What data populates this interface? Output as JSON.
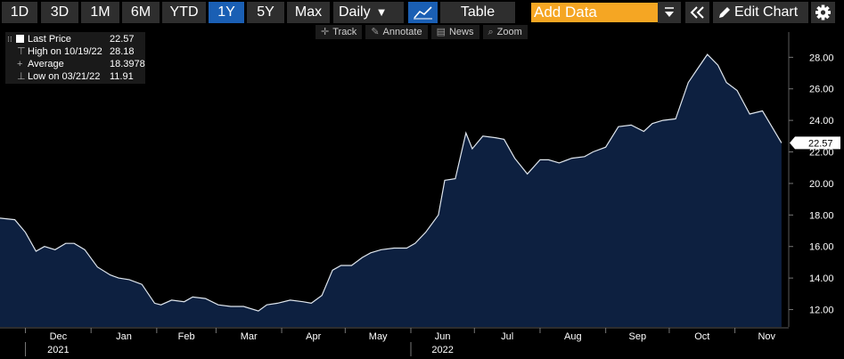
{
  "toolbar": {
    "ranges": [
      "1D",
      "3D",
      "1M",
      "6M",
      "YTD",
      "1Y",
      "5Y",
      "Max"
    ],
    "active_range": "1Y",
    "frequency": "Daily",
    "view_label": "Table",
    "add_data_placeholder": "Add Data",
    "edit_chart_label": "Edit Chart"
  },
  "subtoolbar": {
    "track": "Track",
    "annotate": "Annotate",
    "news": "News",
    "zoom": "Zoom"
  },
  "legend": {
    "last_label": "Last Price",
    "last_value": "22.57",
    "high_label": "High on 10/19/22",
    "high_value": "28.18",
    "avg_label": "Average",
    "avg_value": "18.3978",
    "low_label": "Low on 03/21/22",
    "low_value": "11.91"
  },
  "colors": {
    "line": "#dfe6ee",
    "fill": "#0d2040",
    "active_button": "#1a5fb4",
    "add_data": "#f5a623"
  },
  "chart_data": {
    "type": "area",
    "title": "",
    "xlabel": "",
    "ylabel": "",
    "ylim": [
      10.9,
      29.6
    ],
    "y_ticks": [
      "12.00",
      "14.00",
      "16.00",
      "18.00",
      "20.00",
      "22.00",
      "24.00",
      "26.00",
      "28.00"
    ],
    "x_tick_labels": [
      {
        "label": "Dec",
        "year": "2021"
      },
      {
        "label": "Jan",
        "year": ""
      },
      {
        "label": "Feb",
        "year": ""
      },
      {
        "label": "Mar",
        "year": ""
      },
      {
        "label": "Apr",
        "year": ""
      },
      {
        "label": "May",
        "year": ""
      },
      {
        "label": "Jun",
        "year": "2022"
      },
      {
        "label": "Jul",
        "year": ""
      },
      {
        "label": "Aug",
        "year": ""
      },
      {
        "label": "Sep",
        "year": ""
      },
      {
        "label": "Oct",
        "year": ""
      },
      {
        "label": "Nov",
        "year": ""
      }
    ],
    "last_value_label": "22.57",
    "x": [
      "2021-11-19",
      "2021-11-26",
      "2021-12-01",
      "2021-12-06",
      "2021-12-10",
      "2021-12-15",
      "2021-12-20",
      "2021-12-24",
      "2021-12-29",
      "2022-01-04",
      "2022-01-10",
      "2022-01-14",
      "2022-01-19",
      "2022-01-25",
      "2022-01-31",
      "2022-02-03",
      "2022-02-08",
      "2022-02-14",
      "2022-02-18",
      "2022-02-24",
      "2022-03-02",
      "2022-03-08",
      "2022-03-14",
      "2022-03-21",
      "2022-03-25",
      "2022-03-30",
      "2022-04-05",
      "2022-04-11",
      "2022-04-15",
      "2022-04-20",
      "2022-04-25",
      "2022-04-29",
      "2022-05-04",
      "2022-05-09",
      "2022-05-13",
      "2022-05-18",
      "2022-05-24",
      "2022-05-30",
      "2022-06-03",
      "2022-06-08",
      "2022-06-14",
      "2022-06-17",
      "2022-06-22",
      "2022-06-27",
      "2022-06-30",
      "2022-07-05",
      "2022-07-11",
      "2022-07-15",
      "2022-07-20",
      "2022-07-26",
      "2022-08-01",
      "2022-08-05",
      "2022-08-10",
      "2022-08-16",
      "2022-08-22",
      "2022-08-26",
      "2022-09-01",
      "2022-09-07",
      "2022-09-13",
      "2022-09-19",
      "2022-09-23",
      "2022-09-28",
      "2022-10-04",
      "2022-10-10",
      "2022-10-14",
      "2022-10-19",
      "2022-10-24",
      "2022-10-28",
      "2022-11-02",
      "2022-11-08",
      "2022-11-14",
      "2022-11-18",
      "2022-11-23"
    ],
    "series": [
      {
        "values": [
          17.8,
          17.7,
          16.9,
          15.7,
          16.0,
          15.8,
          16.2,
          16.2,
          15.8,
          14.7,
          14.2,
          14.0,
          13.9,
          13.6,
          12.4,
          12.3,
          12.6,
          12.5,
          12.8,
          12.7,
          12.3,
          12.2,
          12.2,
          11.91,
          12.3,
          12.4,
          12.6,
          12.5,
          12.4,
          12.9,
          14.5,
          14.8,
          14.8,
          15.3,
          15.6,
          15.8,
          15.9,
          15.9,
          16.2,
          16.9,
          18.0,
          20.2,
          20.3,
          23.2,
          22.2,
          23.0,
          22.9,
          22.8,
          21.6,
          20.6,
          21.5,
          21.5,
          21.3,
          21.6,
          21.7,
          22.0,
          22.3,
          23.6,
          23.7,
          23.3,
          23.8,
          24.0,
          24.1,
          26.4,
          27.2,
          28.18,
          27.5,
          26.4,
          25.9,
          24.4,
          24.6,
          23.7,
          22.57
        ]
      }
    ]
  }
}
